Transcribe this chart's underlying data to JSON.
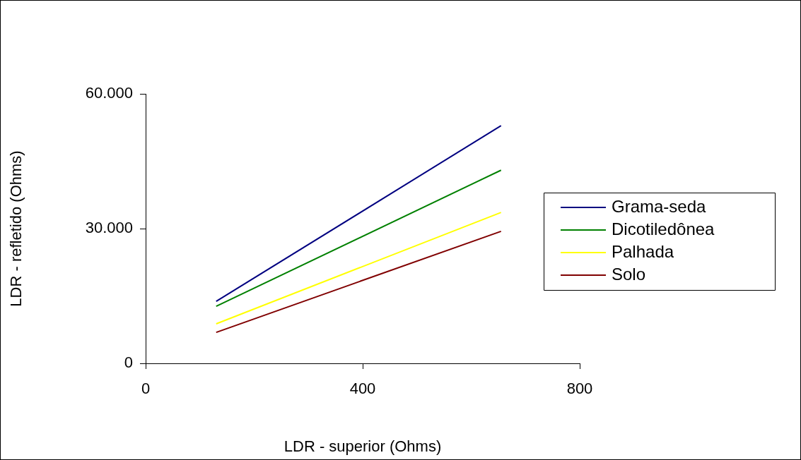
{
  "chart_data": {
    "type": "line",
    "xlabel": "LDR - superior (Ohms)",
    "ylabel": "LDR - refletido (Ohms)",
    "x": [
      130,
      655
    ],
    "series": [
      {
        "name": "Grama-seda",
        "color": "#000080",
        "values": [
          13800,
          52900
        ]
      },
      {
        "name": "Dicotiledônea",
        "color": "#008000",
        "values": [
          12700,
          43000
        ]
      },
      {
        "name": "Palhada",
        "color": "#ffff00",
        "values": [
          8800,
          33600
        ]
      },
      {
        "name": "Solo",
        "color": "#800000",
        "values": [
          6900,
          29400
        ]
      }
    ],
    "xlim": [
      0,
      800
    ],
    "xticks": [
      0,
      400,
      800
    ],
    "ylim": [
      0,
      60000
    ],
    "yticks": [
      {
        "value": 0,
        "label": "0"
      },
      {
        "value": 30000,
        "label": "30.000"
      },
      {
        "value": 60000,
        "label": "60.000"
      }
    ],
    "legend": "right",
    "marker": "none",
    "line_style": "solid"
  }
}
